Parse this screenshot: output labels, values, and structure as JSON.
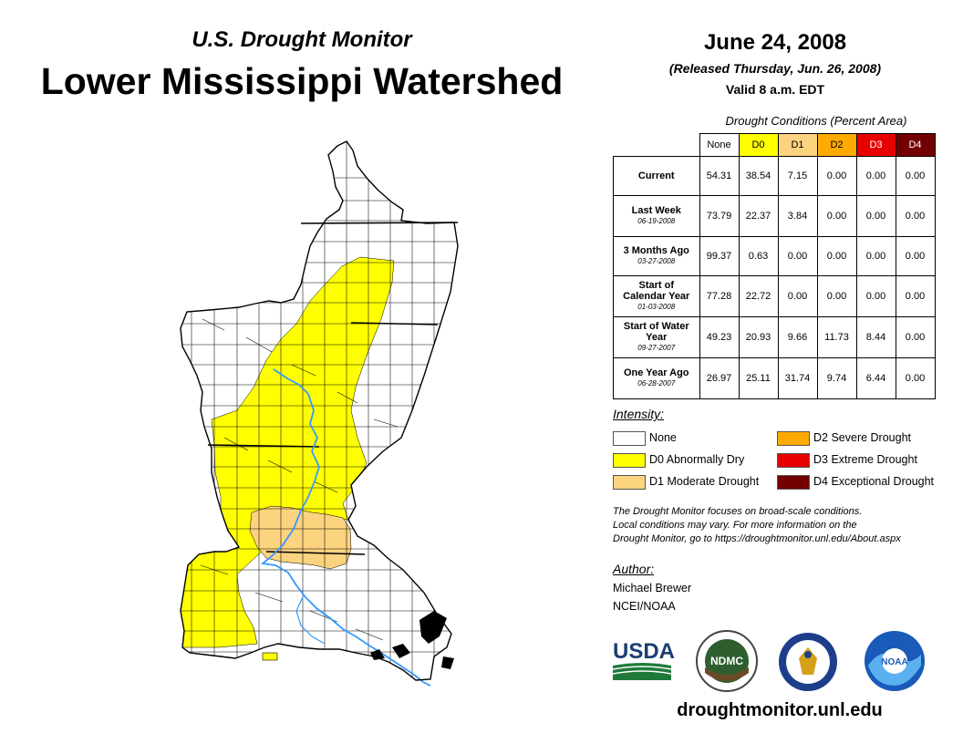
{
  "header": {
    "subtitle": "U.S. Drought Monitor",
    "title": "Lower Mississippi Watershed",
    "date": "June 24, 2008",
    "released": "(Released Thursday, Jun. 26, 2008)",
    "valid": "Valid 8 a.m. EDT"
  },
  "table": {
    "caption": "Drought Conditions (Percent Area)",
    "columns": [
      {
        "label": "None",
        "color": "#ffffff",
        "text_color": "#000000"
      },
      {
        "label": "D0",
        "color": "#ffff00",
        "text_color": "#000000"
      },
      {
        "label": "D1",
        "color": "#fcd37f",
        "text_color": "#000000"
      },
      {
        "label": "D2",
        "color": "#ffaa00",
        "text_color": "#000000"
      },
      {
        "label": "D3",
        "color": "#e60000",
        "text_color": "#ffffff"
      },
      {
        "label": "D4",
        "color": "#730000",
        "text_color": "#ffffff"
      }
    ],
    "rows": [
      {
        "label": "Current",
        "date": "",
        "values": [
          "54.31",
          "38.54",
          "7.15",
          "0.00",
          "0.00",
          "0.00"
        ]
      },
      {
        "label": "Last Week",
        "date": "06-19-2008",
        "values": [
          "73.79",
          "22.37",
          "3.84",
          "0.00",
          "0.00",
          "0.00"
        ]
      },
      {
        "label": "3 Months Ago",
        "date": "03-27-2008",
        "values": [
          "99.37",
          "0.63",
          "0.00",
          "0.00",
          "0.00",
          "0.00"
        ]
      },
      {
        "label": "Start of Calendar Year",
        "date": "01-03-2008",
        "values": [
          "77.28",
          "22.72",
          "0.00",
          "0.00",
          "0.00",
          "0.00"
        ]
      },
      {
        "label": "Start of Water Year",
        "date": "09-27-2007",
        "values": [
          "49.23",
          "20.93",
          "9.66",
          "11.73",
          "8.44",
          "0.00"
        ]
      },
      {
        "label": "One Year Ago",
        "date": "06-28-2007",
        "values": [
          "26.97",
          "25.11",
          "31.74",
          "9.74",
          "6.44",
          "0.00"
        ]
      }
    ]
  },
  "legend": {
    "title": "Intensity:",
    "items": [
      {
        "label": "None",
        "color": "#ffffff"
      },
      {
        "label": "D0 Abnormally Dry",
        "color": "#ffff00"
      },
      {
        "label": "D1 Moderate Drought",
        "color": "#fcd37f"
      },
      {
        "label": "D2 Severe Drought",
        "color": "#ffaa00"
      },
      {
        "label": "D3 Extreme Drought",
        "color": "#e60000"
      },
      {
        "label": "D4 Exceptional Drought",
        "color": "#730000"
      }
    ]
  },
  "note": {
    "line1": "The Drought Monitor focuses on broad-scale conditions.",
    "line2": "Local conditions may vary. For more information on the",
    "line3": "Drought Monitor, go to https://droughtmonitor.unl.edu/About.aspx"
  },
  "author": {
    "heading": "Author:",
    "name": "Michael Brewer",
    "org": "NCEI/NOAA"
  },
  "logos": {
    "usda": "USDA",
    "ndmc": "NDMC",
    "noaa": "NOAA"
  },
  "website": "droughtmonitor.unl.edu",
  "map_colors": {
    "d0": "#ffff00",
    "d1": "#fcd37f",
    "river": "#3399ff",
    "border": "#000000"
  }
}
